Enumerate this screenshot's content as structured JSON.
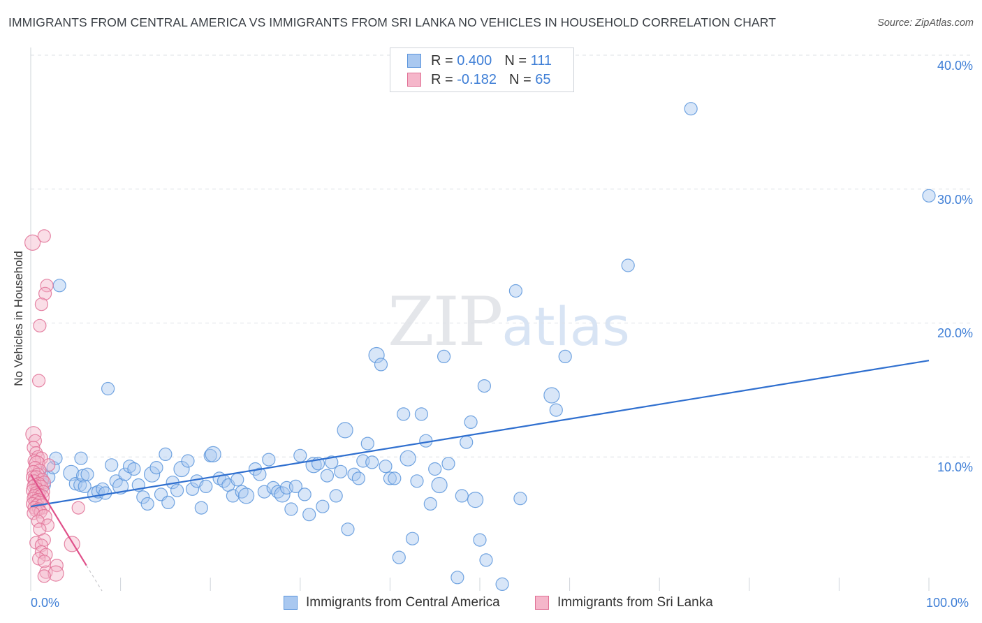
{
  "title": "IMMIGRANTS FROM CENTRAL AMERICA VS IMMIGRANTS FROM SRI LANKA NO VEHICLES IN HOUSEHOLD CORRELATION CHART",
  "source": "Source: ZipAtlas.com",
  "watermark": {
    "zip": "ZIP",
    "atlas": "atlas"
  },
  "legend": {
    "rows": [
      {
        "r_label": "R =",
        "r_value": "0.400",
        "n_label": "N =",
        "n_value": "111"
      },
      {
        "r_label": "R =",
        "r_value": "-0.182",
        "n_label": "N =",
        "n_value": "65"
      }
    ]
  },
  "colors": {
    "blue_fill": "#a9c8f0",
    "blue_stroke": "#5b95dc",
    "blue_line": "#2f6fcf",
    "pink_fill": "#f5b6ca",
    "pink_stroke": "#e07095",
    "pink_line": "#e0508a",
    "tick_text": "#3e7ed6",
    "grid": "#dde1e6"
  },
  "chart_data": {
    "type": "scatter",
    "title": "IMMIGRANTS FROM CENTRAL AMERICA VS IMMIGRANTS FROM SRI LANKA NO VEHICLES IN HOUSEHOLD CORRELATION CHART",
    "xlabel": "",
    "ylabel": "No Vehicles in Household",
    "xlim": [
      0,
      100
    ],
    "ylim": [
      0,
      40
    ],
    "x_tick_labels": [
      "0.0%",
      "100.0%"
    ],
    "y_ticks": [
      10,
      20,
      30,
      40
    ],
    "y_tick_labels": [
      "10.0%",
      "20.0%",
      "30.0%",
      "40.0%"
    ],
    "grid": true,
    "legend_position": "top-center",
    "series": [
      {
        "name": "Immigrants from Central America",
        "color": "#a9c8f0",
        "trend": {
          "x": [
            0,
            100
          ],
          "y": [
            6.3,
            17.2
          ]
        },
        "points": [
          [
            1.0,
            8.2
          ],
          [
            1.2,
            8.8
          ],
          [
            1.5,
            7.9
          ],
          [
            2.0,
            8.5
          ],
          [
            2.5,
            9.2
          ],
          [
            3.2,
            22.8
          ],
          [
            2.8,
            9.9
          ],
          [
            4.5,
            8.8
          ],
          [
            5.0,
            8.0
          ],
          [
            5.6,
            9.9
          ],
          [
            5.5,
            7.9
          ],
          [
            5.8,
            8.6
          ],
          [
            6.0,
            7.8
          ],
          [
            6.3,
            8.7
          ],
          [
            7.2,
            7.2
          ],
          [
            7.5,
            7.4
          ],
          [
            8.0,
            7.6
          ],
          [
            8.3,
            7.3
          ],
          [
            8.6,
            15.1
          ],
          [
            9.0,
            9.4
          ],
          [
            9.5,
            8.2
          ],
          [
            10.0,
            7.8
          ],
          [
            10.5,
            8.7
          ],
          [
            11.0,
            9.3
          ],
          [
            11.5,
            9.1
          ],
          [
            12.0,
            7.9
          ],
          [
            12.5,
            7.0
          ],
          [
            13.0,
            6.5
          ],
          [
            13.5,
            8.7
          ],
          [
            14.0,
            9.2
          ],
          [
            14.5,
            7.2
          ],
          [
            15.0,
            10.2
          ],
          [
            15.3,
            6.6
          ],
          [
            15.8,
            8.1
          ],
          [
            16.3,
            7.5
          ],
          [
            16.8,
            9.1
          ],
          [
            17.5,
            9.7
          ],
          [
            18.0,
            7.6
          ],
          [
            18.5,
            8.2
          ],
          [
            19.0,
            6.2
          ],
          [
            19.5,
            7.8
          ],
          [
            20.0,
            10.1
          ],
          [
            20.3,
            10.2
          ],
          [
            21.0,
            8.4
          ],
          [
            21.5,
            8.2
          ],
          [
            22.0,
            7.9
          ],
          [
            22.5,
            7.1
          ],
          [
            23.0,
            8.3
          ],
          [
            23.5,
            7.4
          ],
          [
            24.0,
            7.1
          ],
          [
            25.0,
            9.1
          ],
          [
            25.5,
            8.7
          ],
          [
            26.0,
            7.4
          ],
          [
            26.5,
            9.8
          ],
          [
            27.0,
            7.7
          ],
          [
            27.5,
            7.4
          ],
          [
            28.0,
            7.2
          ],
          [
            28.5,
            7.7
          ],
          [
            29.0,
            6.1
          ],
          [
            29.5,
            7.8
          ],
          [
            30.0,
            10.1
          ],
          [
            30.5,
            7.2
          ],
          [
            31.0,
            5.7
          ],
          [
            31.5,
            9.4
          ],
          [
            32.0,
            9.5
          ],
          [
            32.5,
            6.3
          ],
          [
            33.0,
            8.6
          ],
          [
            33.5,
            9.6
          ],
          [
            34.0,
            7.1
          ],
          [
            34.5,
            8.9
          ],
          [
            35.0,
            12.0
          ],
          [
            35.3,
            4.6
          ],
          [
            36.0,
            8.7
          ],
          [
            36.5,
            8.4
          ],
          [
            37.0,
            9.7
          ],
          [
            37.5,
            11.0
          ],
          [
            38.0,
            9.6
          ],
          [
            38.5,
            17.6
          ],
          [
            39.0,
            16.9
          ],
          [
            39.5,
            9.3
          ],
          [
            40.0,
            8.4
          ],
          [
            40.5,
            8.4
          ],
          [
            41.0,
            2.5
          ],
          [
            41.5,
            13.2
          ],
          [
            42.0,
            9.9
          ],
          [
            42.5,
            3.9
          ],
          [
            43.0,
            8.2
          ],
          [
            43.5,
            13.2
          ],
          [
            44.0,
            11.2
          ],
          [
            44.5,
            6.5
          ],
          [
            45.0,
            9.1
          ],
          [
            45.5,
            7.9
          ],
          [
            46.0,
            17.5
          ],
          [
            46.5,
            9.5
          ],
          [
            47.5,
            1.0
          ],
          [
            48.0,
            7.1
          ],
          [
            48.5,
            11.1
          ],
          [
            49.0,
            12.6
          ],
          [
            49.5,
            6.8
          ],
          [
            50.0,
            3.8
          ],
          [
            50.5,
            15.3
          ],
          [
            50.7,
            2.3
          ],
          [
            52.5,
            0.5
          ],
          [
            54.0,
            22.4
          ],
          [
            54.5,
            6.9
          ],
          [
            58.0,
            14.6
          ],
          [
            58.5,
            13.5
          ],
          [
            59.5,
            17.5
          ],
          [
            66.5,
            24.3
          ],
          [
            73.5,
            36.0
          ],
          [
            100.0,
            29.5
          ]
        ]
      },
      {
        "name": "Immigrants from Sri Lanka",
        "color": "#f5b6ca",
        "trend": {
          "x": [
            0,
            6.2
          ],
          "y": [
            8.7,
            1.9
          ]
        },
        "points": [
          [
            0.2,
            26.0
          ],
          [
            1.5,
            26.5
          ],
          [
            1.8,
            22.8
          ],
          [
            1.6,
            22.2
          ],
          [
            1.2,
            21.4
          ],
          [
            1.0,
            19.8
          ],
          [
            0.9,
            15.7
          ],
          [
            0.3,
            11.7
          ],
          [
            0.5,
            11.2
          ],
          [
            0.3,
            10.7
          ],
          [
            0.6,
            10.3
          ],
          [
            0.8,
            10.0
          ],
          [
            1.2,
            9.9
          ],
          [
            0.4,
            9.7
          ],
          [
            0.7,
            9.5
          ],
          [
            2.0,
            9.4
          ],
          [
            0.5,
            9.2
          ],
          [
            1.0,
            9.0
          ],
          [
            0.3,
            8.9
          ],
          [
            0.8,
            8.7
          ],
          [
            0.2,
            8.5
          ],
          [
            0.6,
            8.4
          ],
          [
            1.3,
            8.3
          ],
          [
            0.4,
            8.2
          ],
          [
            1.5,
            8.1
          ],
          [
            0.9,
            8.0
          ],
          [
            0.5,
            7.9
          ],
          [
            0.3,
            7.8
          ],
          [
            1.1,
            7.7
          ],
          [
            0.7,
            7.6
          ],
          [
            0.2,
            7.5
          ],
          [
            1.4,
            7.4
          ],
          [
            0.6,
            7.3
          ],
          [
            0.9,
            7.2
          ],
          [
            0.4,
            7.1
          ],
          [
            1.2,
            7.0
          ],
          [
            0.3,
            6.9
          ],
          [
            0.8,
            6.8
          ],
          [
            0.5,
            6.7
          ],
          [
            1.0,
            6.6
          ],
          [
            0.2,
            6.5
          ],
          [
            0.7,
            6.4
          ],
          [
            1.3,
            6.3
          ],
          [
            0.4,
            6.2
          ],
          [
            5.3,
            6.2
          ],
          [
            0.9,
            6.1
          ],
          [
            0.6,
            6.0
          ],
          [
            1.1,
            5.9
          ],
          [
            0.3,
            5.8
          ],
          [
            1.5,
            5.5
          ],
          [
            0.8,
            5.2
          ],
          [
            1.9,
            4.9
          ],
          [
            1.0,
            4.6
          ],
          [
            0.6,
            3.6
          ],
          [
            1.5,
            3.8
          ],
          [
            1.2,
            3.4
          ],
          [
            4.6,
            3.5
          ],
          [
            1.2,
            2.9
          ],
          [
            1.7,
            2.7
          ],
          [
            0.9,
            2.4
          ],
          [
            1.5,
            2.2
          ],
          [
            2.9,
            1.9
          ],
          [
            1.7,
            1.4
          ],
          [
            2.8,
            1.3
          ],
          [
            1.5,
            1.1
          ]
        ]
      }
    ]
  },
  "bottom_legend": [
    {
      "label": "Immigrants from Central America"
    },
    {
      "label": "Immigrants from Sri Lanka"
    }
  ]
}
